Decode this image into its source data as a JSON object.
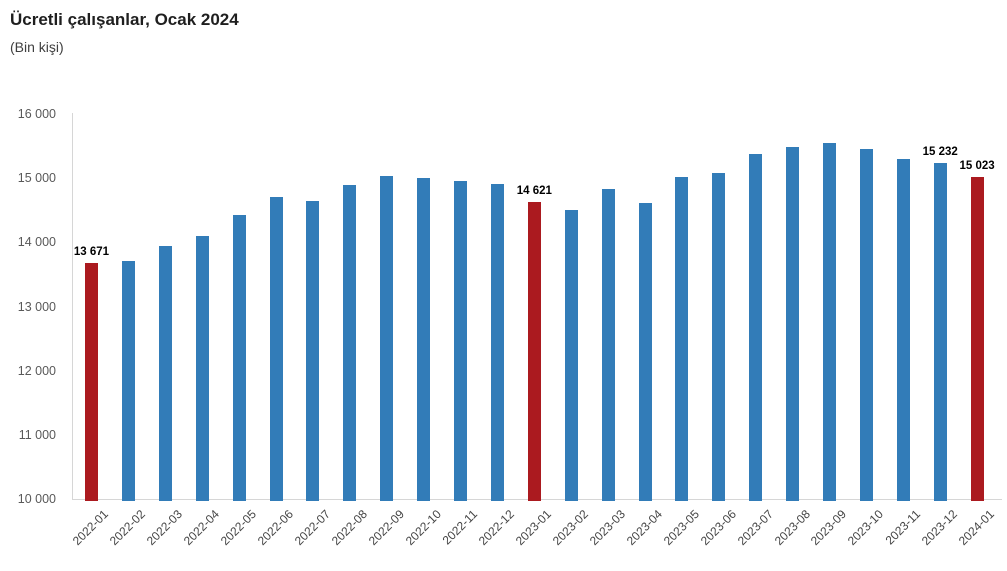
{
  "header": {
    "title": "Ücretli çalışanlar, Ocak 2024",
    "subtitle": "(Bin kişi)"
  },
  "colors": {
    "bar": "#327CB8",
    "highlight": "#AB1A1F",
    "axis_line": "#D6D6D6",
    "tick_text": "#595959",
    "data_label_text": "#000000"
  },
  "chart_data": {
    "type": "bar",
    "title": "Ücretli çalışanlar, Ocak 2024",
    "subtitle": "(Bin kişi)",
    "xlabel": "",
    "ylabel": "",
    "ylim": [
      10000,
      16000
    ],
    "y_ticks": [
      "10 000",
      "11 000",
      "12 000",
      "13 000",
      "14 000",
      "15 000",
      "16 000"
    ],
    "y_tick_values": [
      10000,
      11000,
      12000,
      13000,
      14000,
      15000,
      16000
    ],
    "grid": false,
    "legend": false,
    "categories": [
      "2022-01",
      "2022-02",
      "2022-03",
      "2022-04",
      "2022-05",
      "2022-06",
      "2022-07",
      "2022-08",
      "2022-09",
      "2022-10",
      "2022-11",
      "2022-12",
      "2023-01",
      "2023-02",
      "2023-03",
      "2023-04",
      "2023-05",
      "2023-06",
      "2023-07",
      "2023-08",
      "2023-09",
      "2023-10",
      "2023-11",
      "2023-12",
      "2024-01"
    ],
    "values": [
      13671,
      13710,
      13950,
      14100,
      14420,
      14710,
      14640,
      14900,
      15040,
      15000,
      14950,
      14910,
      14621,
      14510,
      14830,
      14610,
      15015,
      15080,
      15370,
      15480,
      15550,
      15450,
      15300,
      15232,
      15023
    ],
    "highlight_indices": [
      0,
      12,
      24
    ],
    "data_labels": {
      "0": "13 671",
      "12": "14 621",
      "23": "15 232",
      "24": "15 023"
    }
  }
}
